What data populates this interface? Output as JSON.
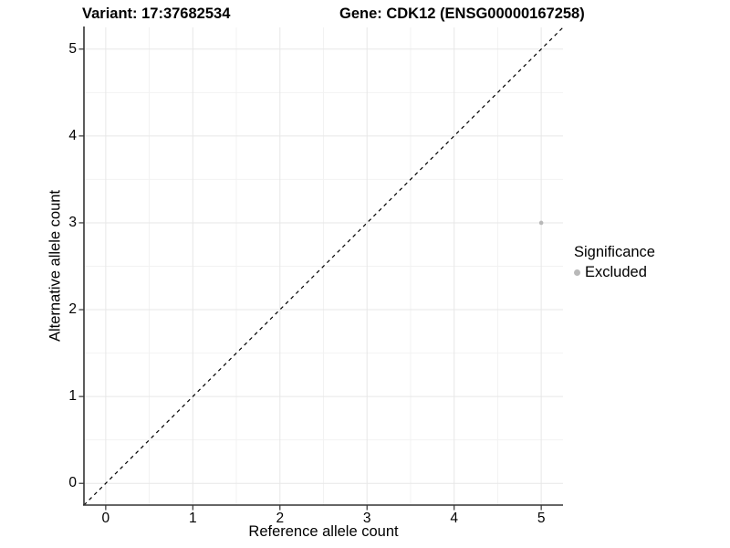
{
  "chart_data": {
    "type": "scatter",
    "title_left": "Variant: 17:37682534",
    "title_right": "Gene: CDK12 (ENSG00000167258)",
    "xlabel": "Reference allele count",
    "ylabel": "Alternative allele count",
    "xlim": [
      -0.25,
      5.25
    ],
    "ylim": [
      -0.25,
      5.25
    ],
    "x_ticks": [
      0,
      1,
      2,
      3,
      4,
      5
    ],
    "y_ticks": [
      0,
      1,
      2,
      3,
      4,
      5
    ],
    "grid": "major-and-minor",
    "reference_line": {
      "type": "identity y=x",
      "style": "dashed",
      "color": "#000000"
    },
    "series": [
      {
        "name": "Excluded",
        "color": "#b9b9b9",
        "points": [
          {
            "x": 5,
            "y": 3
          }
        ]
      }
    ],
    "legend": {
      "title": "Significance",
      "position": "right",
      "entries": [
        {
          "label": "Excluded",
          "color": "#b9b9b9",
          "marker": "circle"
        }
      ]
    },
    "colors": {
      "background": "#ffffff",
      "grid_major": "#e7e7e7",
      "grid_minor": "#f2f2f2",
      "axis_line": "#333333",
      "tick_mark": "#333333",
      "text": "#000000"
    }
  }
}
